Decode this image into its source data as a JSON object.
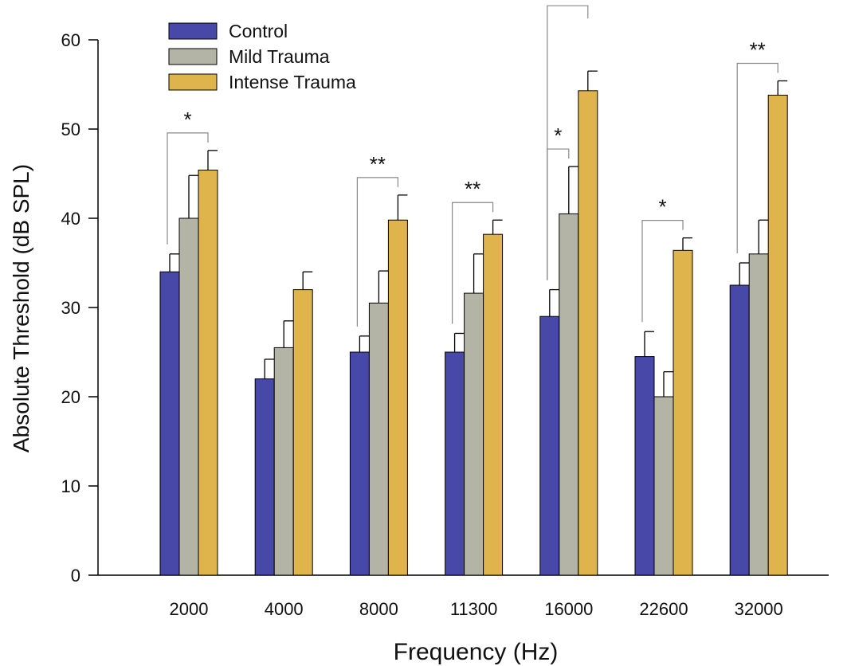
{
  "chart_data": {
    "type": "bar",
    "title": "",
    "xlabel": "Frequency (Hz)",
    "ylabel": "Absolute Threshold (dB SPL)",
    "ylim": [
      0,
      60
    ],
    "yticks": [
      0,
      10,
      20,
      30,
      40,
      50,
      60
    ],
    "categories": [
      "2000",
      "4000",
      "8000",
      "11300",
      "16000",
      "22600",
      "32000"
    ],
    "series": [
      {
        "name": "Control",
        "color": "#4848a8",
        "values": [
          34.0,
          22.0,
          25.0,
          25.0,
          29.0,
          24.5,
          32.5
        ],
        "errors": [
          2.0,
          2.2,
          1.8,
          2.1,
          3.0,
          2.8,
          2.5
        ]
      },
      {
        "name": "Mild Trauma",
        "color": "#b4b4a6",
        "values": [
          40.0,
          25.5,
          30.5,
          31.6,
          40.5,
          20.0,
          36.0
        ],
        "errors": [
          4.8,
          3.0,
          3.6,
          4.4,
          5.3,
          2.8,
          3.8
        ]
      },
      {
        "name": "Intense Trauma",
        "color": "#e0b44c",
        "values": [
          45.4,
          32.0,
          39.8,
          38.2,
          54.3,
          36.4,
          53.8
        ],
        "errors": [
          2.2,
          2.0,
          2.8,
          1.6,
          2.2,
          1.4,
          1.6
        ]
      }
    ],
    "legend_position": "top-left",
    "significance": [
      {
        "category": 0,
        "from": 0,
        "to": 2,
        "label": "*"
      },
      {
        "category": 2,
        "from": 0,
        "to": 2,
        "label": "**"
      },
      {
        "category": 3,
        "from": 0,
        "to": 2,
        "label": "**"
      },
      {
        "category": 4,
        "from": 0,
        "to": 1,
        "label": "*"
      },
      {
        "category": 4,
        "from": 0,
        "to": 2,
        "label": "**"
      },
      {
        "category": 5,
        "from": 0,
        "to": 2,
        "label": "*"
      },
      {
        "category": 6,
        "from": 0,
        "to": 2,
        "label": "**"
      }
    ]
  }
}
